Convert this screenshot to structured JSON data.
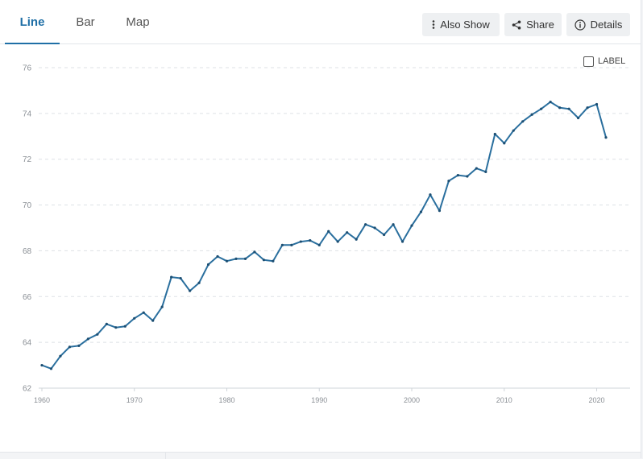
{
  "tabs": [
    {
      "label": "Line",
      "active": true
    },
    {
      "label": "Bar",
      "active": false
    },
    {
      "label": "Map",
      "active": false
    }
  ],
  "toolbar": {
    "also_show": "Also Show",
    "share": "Share",
    "details": "Details"
  },
  "label_toggle": {
    "text": "LABEL",
    "checked": false
  },
  "colors": {
    "accent": "#1f6fa6",
    "line": "#2a6f9e",
    "grid": "#dde1e5",
    "tick": "#8a8f95"
  },
  "chart_data": {
    "type": "line",
    "xlim": [
      1960,
      2021
    ],
    "ylim": [
      62,
      76
    ],
    "yticks": [
      62,
      64,
      66,
      68,
      70,
      72,
      74,
      76
    ],
    "xticks": [
      1960,
      1970,
      1980,
      1990,
      2000,
      2010,
      2020
    ],
    "grid": true,
    "x": [
      1960,
      1961,
      1962,
      1963,
      1964,
      1965,
      1966,
      1967,
      1968,
      1969,
      1970,
      1971,
      1972,
      1973,
      1974,
      1975,
      1976,
      1977,
      1978,
      1979,
      1980,
      1981,
      1982,
      1983,
      1984,
      1985,
      1986,
      1987,
      1988,
      1989,
      1990,
      1991,
      1992,
      1993,
      1994,
      1995,
      1996,
      1997,
      1998,
      1999,
      2000,
      2001,
      2002,
      2003,
      2004,
      2005,
      2006,
      2007,
      2008,
      2009,
      2010,
      2011,
      2012,
      2013,
      2014,
      2015,
      2016,
      2017,
      2018,
      2019,
      2020,
      2021
    ],
    "values": [
      63.0,
      62.85,
      63.4,
      63.8,
      63.85,
      64.15,
      64.35,
      64.8,
      64.65,
      64.7,
      65.05,
      65.3,
      64.95,
      65.55,
      66.85,
      66.8,
      66.25,
      66.6,
      67.4,
      67.75,
      67.55,
      67.65,
      67.65,
      67.95,
      67.6,
      67.55,
      68.25,
      68.25,
      68.4,
      68.45,
      68.25,
      68.85,
      68.4,
      68.8,
      68.5,
      69.15,
      69.0,
      68.7,
      69.15,
      68.4,
      69.1,
      69.7,
      70.45,
      69.75,
      71.05,
      71.3,
      71.25,
      71.6,
      71.45,
      73.1,
      72.7,
      73.25,
      73.65,
      73.95,
      74.2,
      74.5,
      74.25,
      74.2,
      73.8,
      74.25,
      74.4,
      72.95
    ]
  }
}
